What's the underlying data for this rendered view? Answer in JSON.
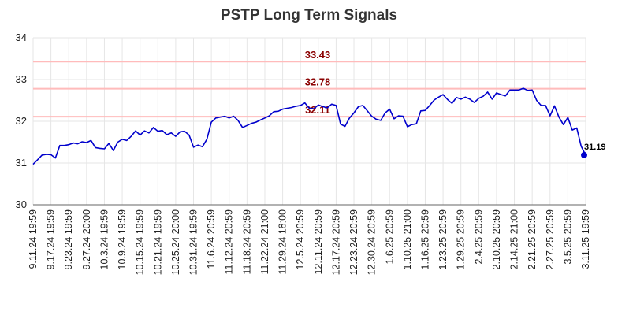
{
  "chart_data": {
    "type": "line",
    "title": "PSTP Long Term Signals",
    "xlabel": "",
    "ylabel": "",
    "ylim": [
      30,
      34
    ],
    "yticks": [
      "30",
      "31",
      "32",
      "33",
      "34"
    ],
    "grid": true,
    "x_tick_labels": [
      "9.11.24 19:59",
      "9.17.24 19:59",
      "9.23.24 19:59",
      "9.27.24 20:00",
      "10.3.24 19:59",
      "10.9.24 19:59",
      "10.15.24 19:59",
      "10.21.24 19:59",
      "10.25.24 20:00",
      "10.31.24 19:59",
      "11.6.24 20:59",
      "11.12.24 20:59",
      "11.18.24 20:59",
      "11.22.24 21:00",
      "11.29.24 18:00",
      "12.5.24 20:59",
      "12.11.24 20:59",
      "12.17.24 20:59",
      "12.23.24 20:59",
      "12.30.24 20:59",
      "1.6.25 20:59",
      "1.10.25 21:00",
      "1.16.25 20:59",
      "1.23.25 20:59",
      "1.29.25 20:59",
      "2.4.25 20:59",
      "2.10.25 20:59",
      "2.14.25 21:00",
      "2.21.25 20:59",
      "2.27.25 20:59",
      "3.5.25 20:59",
      "3.11.25 19:59"
    ],
    "series": [
      {
        "color": "#0000cc",
        "values": [
          30.97,
          31.08,
          31.19,
          31.21,
          31.2,
          31.12,
          31.42,
          31.42,
          31.44,
          31.48,
          31.46,
          31.51,
          31.49,
          31.54,
          31.37,
          31.35,
          31.34,
          31.47,
          31.3,
          31.5,
          31.57,
          31.54,
          31.64,
          31.77,
          31.67,
          31.77,
          31.72,
          31.85,
          31.76,
          31.78,
          31.68,
          31.72,
          31.64,
          31.75,
          31.76,
          31.67,
          31.38,
          31.43,
          31.39,
          31.57,
          31.98,
          32.08,
          32.1,
          32.12,
          32.08,
          32.12,
          32.02,
          31.85,
          31.9,
          31.95,
          31.98,
          32.03,
          32.08,
          32.13,
          32.23,
          32.24,
          32.29,
          32.31,
          32.33,
          32.36,
          32.38,
          32.44,
          32.31,
          32.3,
          32.39,
          32.35,
          32.32,
          32.41,
          32.38,
          31.93,
          31.88,
          32.08,
          32.2,
          32.35,
          32.38,
          32.25,
          32.12,
          32.05,
          32.02,
          32.2,
          32.29,
          32.06,
          32.13,
          32.12,
          31.87,
          31.92,
          31.94,
          32.25,
          32.26,
          32.38,
          32.51,
          32.58,
          32.64,
          32.52,
          32.43,
          32.57,
          32.53,
          32.58,
          32.53,
          32.45,
          32.55,
          32.6,
          32.7,
          32.53,
          32.68,
          32.64,
          32.61,
          32.75,
          32.75,
          32.75,
          32.79,
          32.74,
          32.75,
          32.5,
          32.38,
          32.38,
          32.13,
          32.37,
          32.1,
          31.92,
          32.09,
          31.79,
          31.84,
          31.4,
          31.19
        ]
      }
    ],
    "levels": [
      {
        "value": 33.43,
        "label": "33.43"
      },
      {
        "value": 32.78,
        "label": "32.78"
      },
      {
        "value": 32.11,
        "label": "32.11"
      }
    ],
    "last_point": {
      "value": 31.19,
      "label": "31.19"
    },
    "colors": {
      "line": "#0000cc",
      "level_line": "#ffbbbb",
      "level_text": "#8b0000",
      "grid": "#e6e6e6"
    }
  }
}
